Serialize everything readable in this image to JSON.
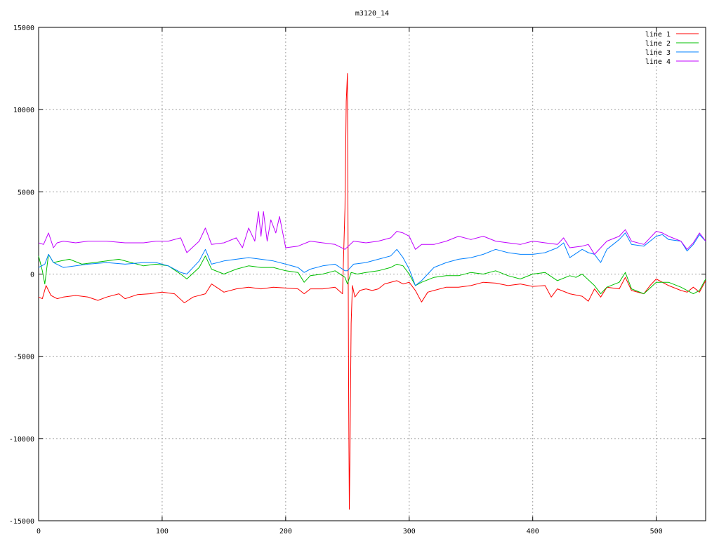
{
  "chart_data": {
    "type": "line",
    "title": "m3120_14",
    "xlabel": "",
    "ylabel": "",
    "xlim": [
      0,
      540
    ],
    "ylim": [
      -15000,
      15000
    ],
    "xticks": [
      0,
      100,
      200,
      300,
      400,
      500
    ],
    "yticks": [
      -15000,
      -10000,
      -5000,
      0,
      5000,
      10000,
      15000
    ],
    "grid": true,
    "legend_position": "top-right",
    "series": [
      {
        "name": "line 1",
        "color": "#ff0000",
        "x": [
          0,
          3,
          6,
          10,
          15,
          20,
          30,
          40,
          48,
          55,
          65,
          70,
          80,
          90,
          100,
          110,
          118,
          125,
          135,
          140,
          150,
          160,
          170,
          180,
          190,
          200,
          210,
          215,
          220,
          230,
          240,
          246,
          248,
          249,
          250,
          251,
          251.5,
          252,
          253,
          254,
          256,
          260,
          265,
          270,
          275,
          280,
          290,
          295,
          300,
          305,
          310,
          315,
          320,
          330,
          340,
          350,
          360,
          370,
          380,
          390,
          400,
          410,
          415,
          420,
          430,
          440,
          445,
          450,
          455,
          460,
          470,
          475,
          480,
          490,
          495,
          500,
          510,
          520,
          525,
          530,
          535,
          540
        ],
        "values": [
          -1400,
          -1500,
          -700,
          -1300,
          -1500,
          -1400,
          -1300,
          -1400,
          -1600,
          -1400,
          -1200,
          -1500,
          -1250,
          -1200,
          -1100,
          -1200,
          -1750,
          -1400,
          -1200,
          -600,
          -1100,
          -900,
          -800,
          -900,
          -800,
          -850,
          -900,
          -1200,
          -900,
          -900,
          -800,
          -1200,
          4000,
          10500,
          12200,
          -7800,
          -14300,
          -11500,
          -3000,
          -700,
          -1400,
          -1000,
          -900,
          -1000,
          -900,
          -600,
          -400,
          -600,
          -500,
          -1000,
          -1700,
          -1100,
          -1000,
          -800,
          -800,
          -700,
          -500,
          -550,
          -700,
          -600,
          -750,
          -700,
          -1400,
          -900,
          -1200,
          -1350,
          -1650,
          -900,
          -1400,
          -800,
          -900,
          -200,
          -1000,
          -1200,
          -700,
          -300,
          -700,
          -1000,
          -1100,
          -800,
          -1100,
          -400
        ]
      },
      {
        "name": "line 2",
        "color": "#00c000",
        "x": [
          0,
          3,
          5,
          8,
          12,
          18,
          25,
          35,
          45,
          55,
          65,
          75,
          85,
          95,
          105,
          115,
          120,
          130,
          135,
          140,
          150,
          160,
          170,
          180,
          190,
          200,
          210,
          215,
          220,
          230,
          240,
          248,
          250,
          253,
          258,
          265,
          275,
          285,
          290,
          295,
          300,
          305,
          310,
          320,
          330,
          340,
          350,
          360,
          370,
          380,
          390,
          400,
          410,
          420,
          430,
          435,
          440,
          450,
          455,
          460,
          470,
          475,
          480,
          490,
          500,
          510,
          520,
          530,
          535,
          540
        ],
        "values": [
          1100,
          200,
          -600,
          1200,
          700,
          800,
          900,
          600,
          700,
          800,
          900,
          700,
          500,
          600,
          500,
          0,
          -300,
          400,
          1100,
          300,
          0,
          300,
          500,
          400,
          400,
          200,
          100,
          -500,
          -100,
          0,
          200,
          -200,
          -600,
          100,
          0,
          100,
          200,
          400,
          600,
          500,
          0,
          -700,
          -500,
          -200,
          -100,
          -100,
          100,
          0,
          200,
          -100,
          -300,
          0,
          100,
          -400,
          -100,
          -200,
          0,
          -700,
          -1200,
          -800,
          -500,
          100,
          -900,
          -1200,
          -500,
          -500,
          -800,
          -1200,
          -1000,
          -300
        ]
      },
      {
        "name": "line 3",
        "color": "#0080ff",
        "x": [
          0,
          5,
          8,
          12,
          20,
          30,
          40,
          55,
          70,
          85,
          95,
          105,
          115,
          120,
          130,
          135,
          140,
          150,
          160,
          170,
          180,
          190,
          200,
          210,
          215,
          220,
          230,
          240,
          248,
          250,
          255,
          265,
          275,
          285,
          290,
          295,
          300,
          305,
          310,
          320,
          330,
          340,
          350,
          360,
          370,
          380,
          390,
          400,
          410,
          420,
          425,
          430,
          440,
          445,
          450,
          455,
          460,
          470,
          475,
          480,
          490,
          500,
          505,
          510,
          520,
          525,
          530,
          535,
          540
        ],
        "values": [
          400,
          600,
          1200,
          700,
          400,
          500,
          600,
          700,
          600,
          700,
          700,
          500,
          100,
          0,
          800,
          1500,
          600,
          800,
          900,
          1000,
          900,
          800,
          600,
          400,
          100,
          300,
          500,
          600,
          200,
          200,
          600,
          700,
          900,
          1100,
          1500,
          1000,
          300,
          -700,
          -400,
          400,
          700,
          900,
          1000,
          1200,
          1500,
          1300,
          1200,
          1200,
          1300,
          1600,
          1900,
          1000,
          1500,
          1300,
          1200,
          700,
          1500,
          2100,
          2500,
          1800,
          1700,
          2300,
          2400,
          2100,
          2000,
          1400,
          1800,
          2400,
          2000
        ]
      },
      {
        "name": "line 4",
        "color": "#c000ff",
        "x": [
          0,
          4,
          8,
          12,
          15,
          20,
          30,
          40,
          55,
          70,
          85,
          95,
          105,
          115,
          120,
          130,
          135,
          140,
          150,
          160,
          165,
          170,
          175,
          178,
          180,
          182,
          185,
          188,
          192,
          195,
          200,
          210,
          220,
          230,
          240,
          248,
          255,
          265,
          275,
          285,
          290,
          295,
          300,
          305,
          310,
          320,
          330,
          340,
          350,
          360,
          370,
          380,
          390,
          400,
          410,
          420,
          425,
          430,
          440,
          445,
          450,
          460,
          470,
          475,
          480,
          490,
          500,
          505,
          510,
          520,
          525,
          530,
          535,
          540
        ],
        "values": [
          1900,
          1800,
          2500,
          1600,
          1900,
          2000,
          1900,
          2000,
          2000,
          1900,
          1900,
          2000,
          2000,
          2200,
          1300,
          2000,
          2800,
          1800,
          1900,
          2200,
          1600,
          2800,
          2000,
          3800,
          2300,
          3800,
          2000,
          3300,
          2500,
          3500,
          1600,
          1700,
          2000,
          1900,
          1800,
          1500,
          2000,
          1900,
          2000,
          2200,
          2600,
          2500,
          2300,
          1500,
          1800,
          1800,
          2000,
          2300,
          2100,
          2300,
          2000,
          1900,
          1800,
          2000,
          1900,
          1800,
          2200,
          1600,
          1700,
          1800,
          1200,
          2000,
          2300,
          2700,
          2000,
          1800,
          2600,
          2500,
          2300,
          2000,
          1500,
          1900,
          2500,
          2000
        ]
      }
    ]
  }
}
